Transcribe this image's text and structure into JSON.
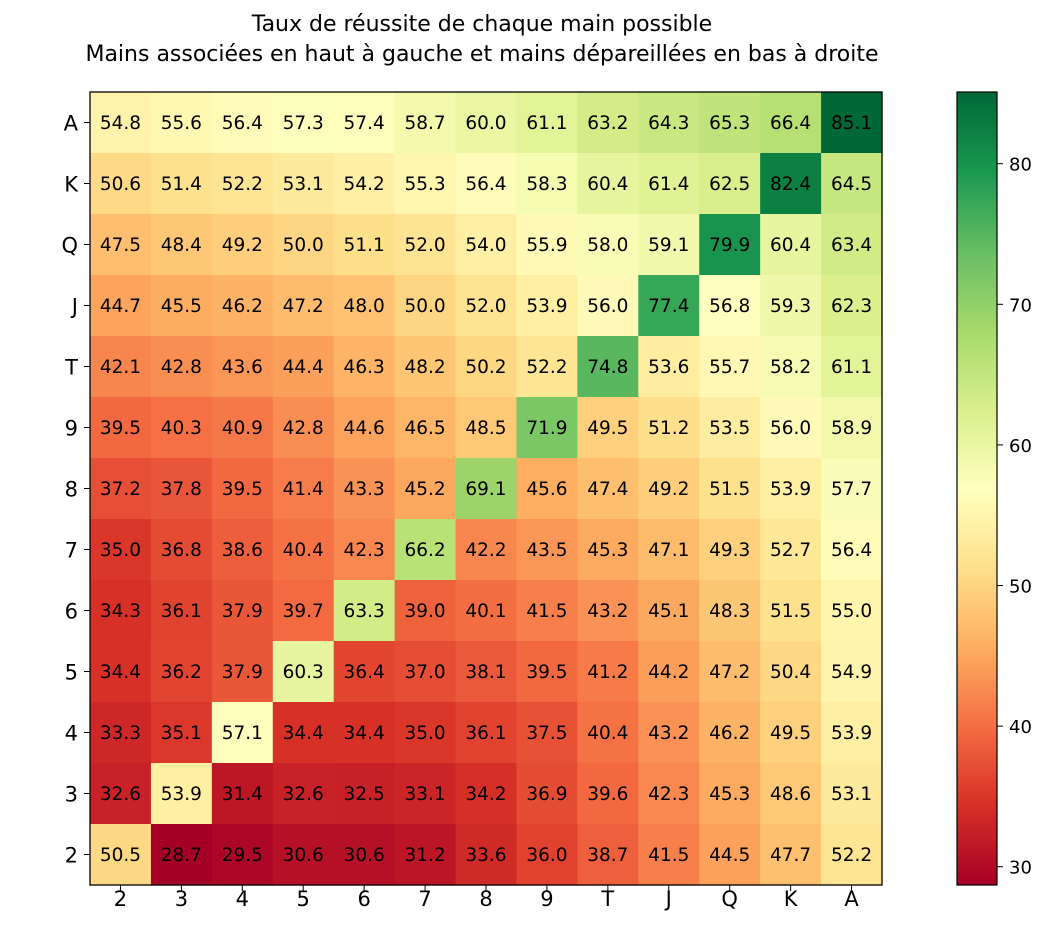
{
  "chart_data": {
    "type": "heatmap",
    "title_lines": [
      "Taux de réussite de chaque main possible",
      "Mains associées en haut à gauche et mains dépareillées en bas à droite"
    ],
    "x_labels": [
      "2",
      "3",
      "4",
      "5",
      "6",
      "7",
      "8",
      "9",
      "T",
      "J",
      "Q",
      "K",
      "A"
    ],
    "y_labels": [
      "A",
      "K",
      "Q",
      "J",
      "T",
      "9",
      "8",
      "7",
      "6",
      "5",
      "4",
      "3",
      "2"
    ],
    "values": [
      [
        54.8,
        55.6,
        56.4,
        57.3,
        57.4,
        58.7,
        60.0,
        61.1,
        63.2,
        64.3,
        65.3,
        66.4,
        85.1
      ],
      [
        50.6,
        51.4,
        52.2,
        53.1,
        54.2,
        55.3,
        56.4,
        58.3,
        60.4,
        61.4,
        62.5,
        82.4,
        64.5
      ],
      [
        47.5,
        48.4,
        49.2,
        50.0,
        51.1,
        52.0,
        54.0,
        55.9,
        58.0,
        59.1,
        79.9,
        60.4,
        63.4
      ],
      [
        44.7,
        45.5,
        46.2,
        47.2,
        48.0,
        50.0,
        52.0,
        53.9,
        56.0,
        77.4,
        56.8,
        59.3,
        62.3
      ],
      [
        42.1,
        42.8,
        43.6,
        44.4,
        46.3,
        48.2,
        50.2,
        52.2,
        74.8,
        53.6,
        55.7,
        58.2,
        61.1
      ],
      [
        39.5,
        40.3,
        40.9,
        42.8,
        44.6,
        46.5,
        48.5,
        71.9,
        49.5,
        51.2,
        53.5,
        56.0,
        58.9
      ],
      [
        37.2,
        37.8,
        39.5,
        41.4,
        43.3,
        45.2,
        69.1,
        45.6,
        47.4,
        49.2,
        51.5,
        53.9,
        57.7
      ],
      [
        35.0,
        36.8,
        38.6,
        40.4,
        42.3,
        66.2,
        42.2,
        43.5,
        45.3,
        47.1,
        49.3,
        52.7,
        56.4
      ],
      [
        34.3,
        36.1,
        37.9,
        39.7,
        63.3,
        39.0,
        40.1,
        41.5,
        43.2,
        45.1,
        48.3,
        51.5,
        55.0
      ],
      [
        34.4,
        36.2,
        37.9,
        60.3,
        36.4,
        37.0,
        38.1,
        39.5,
        41.2,
        44.2,
        47.2,
        50.4,
        54.9
      ],
      [
        33.3,
        35.1,
        57.1,
        34.4,
        34.4,
        35.0,
        36.1,
        37.5,
        40.4,
        43.2,
        46.2,
        49.5,
        53.9
      ],
      [
        32.6,
        53.9,
        31.4,
        32.6,
        32.5,
        33.1,
        34.2,
        36.9,
        39.6,
        42.3,
        45.3,
        48.6,
        53.1
      ],
      [
        50.5,
        28.7,
        29.5,
        30.6,
        30.6,
        31.2,
        33.6,
        36.0,
        38.7,
        41.5,
        44.5,
        47.7,
        52.2
      ]
    ],
    "colormap": "RdYlGn",
    "vmin": 28.7,
    "vmax": 85.1,
    "colorbar_ticks": [
      30,
      40,
      50,
      60,
      70,
      80
    ]
  }
}
